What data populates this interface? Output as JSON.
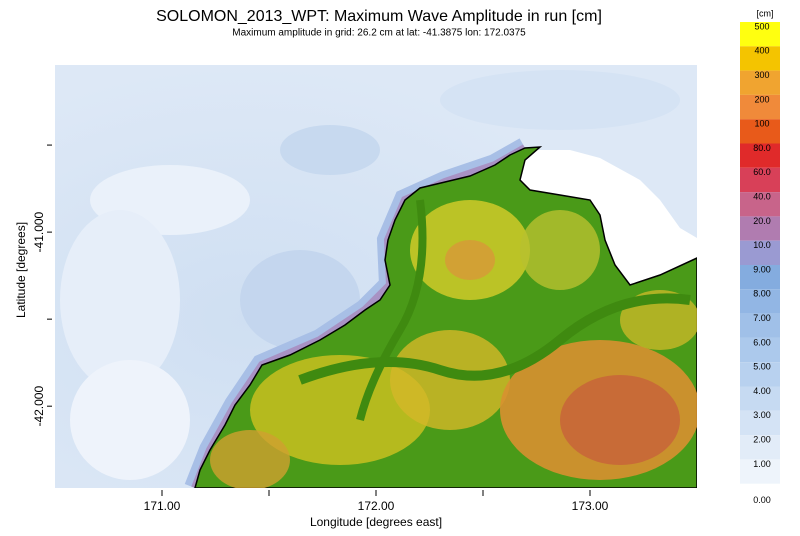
{
  "title": "SOLOMON_2013_WPT: Maximum Wave Amplitude in run [cm]",
  "subtitle": "Maximum amplitude in grid: 26.2 cm at lat: -41.3875 lon: 172.0375",
  "map": {
    "x_label": "Longitude [degrees east]",
    "y_label": "Latitude [degrees]",
    "xlim": [
      170.5,
      173.5
    ],
    "ylim": [
      -42.47,
      -40.04
    ],
    "xticks": [
      {
        "value": 171,
        "label": "171.00"
      },
      {
        "value": 172,
        "label": "172.00"
      },
      {
        "value": 173,
        "label": "173.00"
      }
    ],
    "xminor": [
      171.5,
      172.5
    ],
    "yticks": [
      {
        "value": -41,
        "label": "-41.000"
      },
      {
        "value": -42,
        "label": "-42.000"
      }
    ],
    "yminor": [
      -40.5,
      -41.5
    ]
  },
  "colorbar": {
    "unit": "[cm]",
    "levels": [
      500,
      400,
      300,
      200,
      100,
      {
        "value": 80,
        "label": "80.0"
      },
      {
        "value": 60,
        "label": "60.0"
      },
      {
        "value": 40,
        "label": "40.0"
      },
      {
        "value": 20,
        "label": "20.0"
      },
      {
        "value": 10,
        "label": "10.0"
      },
      {
        "value": 9,
        "label": "9.00"
      },
      {
        "value": 8,
        "label": "8.00"
      },
      {
        "value": 7,
        "label": "7.00"
      },
      {
        "value": 6,
        "label": "6.00"
      },
      {
        "value": 5,
        "label": "5.00"
      },
      {
        "value": 4,
        "label": "4.00"
      },
      {
        "value": 3,
        "label": "3.00"
      },
      {
        "value": 2,
        "label": "2.00"
      },
      {
        "value": 1,
        "label": "1.00"
      },
      {
        "value": 0,
        "label": "0.00"
      }
    ],
    "colors": [
      "#ffff10",
      "#f4c400",
      "#f0a430",
      "#f08a3a",
      "#e85a1a",
      "#e02a2a",
      "#d84058",
      "#c8648a",
      "#b07cb0",
      "#9a9ad2",
      "#84acdf",
      "#92b6e4",
      "#a0c0e8",
      "#acc9ec",
      "#b8d1ef",
      "#c6daf2",
      "#d4e3f5",
      "#e2ecf8",
      "#eef4fb"
    ]
  }
}
